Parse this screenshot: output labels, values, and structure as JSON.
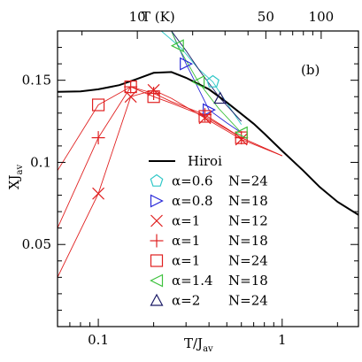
{
  "chart_data": {
    "type": "scatter",
    "panel_label": "(b)",
    "xlabel_main": "T/J",
    "xlabel_sub": "av",
    "ylabel_main": "XJ",
    "ylabel_sub": "av",
    "top_axis_label": "T (K)",
    "x_scale": "log",
    "xlim": [
      0.06,
      2.6
    ],
    "ylim": [
      0,
      0.18
    ],
    "x_ticks": [
      {
        "value": 0.1,
        "label": "0.1"
      },
      {
        "value": 1,
        "label": "1"
      }
    ],
    "y_ticks": [
      {
        "value": 0.05,
        "label": "0.05"
      },
      {
        "value": 0.1,
        "label": "0.1"
      },
      {
        "value": 0.15,
        "label": "0.15"
      }
    ],
    "top_ticks": [
      {
        "value": 0.163,
        "label": "10"
      },
      {
        "value": 0.815,
        "label": "50"
      },
      {
        "value": 1.63,
        "label": "100"
      }
    ],
    "legend_position": "center",
    "series": [
      {
        "name": "Hiroi",
        "kind": "line",
        "color": "#000000",
        "x": [
          0.06,
          0.08,
          0.1,
          0.13,
          0.16,
          0.2,
          0.25,
          0.3,
          0.4,
          0.5,
          0.6,
          0.7,
          0.8,
          1.0,
          1.3,
          1.6,
          2.0,
          2.6
        ],
        "y": [
          0.143,
          0.1432,
          0.1445,
          0.147,
          0.1505,
          0.1545,
          0.155,
          0.1515,
          0.1445,
          0.1365,
          0.1295,
          0.1235,
          0.1175,
          0.107,
          0.095,
          0.085,
          0.076,
          0.068
        ]
      },
      {
        "name": "alpha=0.6 N=24",
        "alpha": "α=0.6",
        "N": "N=24",
        "marker": "pentagon",
        "color": "#2fc7c7",
        "x": [
          0.42
        ],
        "y": [
          0.149
        ],
        "curve_x": [
          0.22,
          0.28,
          0.35,
          0.42,
          0.5,
          0.6
        ],
        "curve_y": [
          0.18,
          0.17,
          0.157,
          0.149,
          0.136,
          0.123
        ]
      },
      {
        "name": "alpha=0.8 N=18",
        "alpha": "α=0.8",
        "N": "N=18",
        "marker": "triangle-right",
        "color": "#2828d8",
        "x": [
          0.3,
          0.4
        ],
        "y": [
          0.16,
          0.132
        ],
        "curve_x": [
          0.25,
          0.3,
          0.35,
          0.4,
          0.5,
          0.6
        ],
        "curve_y": [
          0.18,
          0.16,
          0.145,
          0.132,
          0.124,
          0.118
        ]
      },
      {
        "name": "alpha=1 N=12",
        "alpha": "α=1",
        "N": "N=12",
        "marker": "x",
        "color": "#e02020",
        "x": [
          0.1,
          0.15,
          0.2,
          0.38,
          0.6
        ],
        "y": [
          0.081,
          0.14,
          0.144,
          0.127,
          0.114
        ],
        "curve_x": [
          0.06,
          0.1,
          0.15,
          0.2,
          0.25,
          0.38,
          0.6,
          1.0
        ],
        "curve_y": [
          0.03,
          0.081,
          0.14,
          0.144,
          0.139,
          0.127,
          0.114,
          0.104
        ]
      },
      {
        "name": "alpha=1 N=18",
        "alpha": "α=1",
        "N": "N=18",
        "marker": "plus",
        "color": "#e02020",
        "x": [
          0.1,
          0.15,
          0.2,
          0.38,
          0.6
        ],
        "y": [
          0.115,
          0.146,
          0.142,
          0.129,
          0.115
        ],
        "curve_x": [
          0.06,
          0.1,
          0.15,
          0.2,
          0.25,
          0.38,
          0.6,
          1.0
        ],
        "curve_y": [
          0.06,
          0.115,
          0.146,
          0.142,
          0.137,
          0.129,
          0.115,
          0.104
        ]
      },
      {
        "name": "alpha=1 N=24",
        "alpha": "α=1",
        "N": "N=24",
        "marker": "square",
        "color": "#e02020",
        "x": [
          0.1,
          0.15,
          0.2,
          0.38,
          0.6
        ],
        "y": [
          0.135,
          0.146,
          0.14,
          0.128,
          0.115
        ],
        "curve_x": [
          0.06,
          0.1,
          0.15,
          0.2,
          0.25,
          0.38,
          0.6,
          1.0
        ],
        "curve_y": [
          0.095,
          0.135,
          0.146,
          0.14,
          0.136,
          0.128,
          0.115,
          0.104
        ]
      },
      {
        "name": "alpha=1.4 N=18",
        "alpha": "α=1.4",
        "N": "N=18",
        "marker": "triangle-left",
        "color": "#3ec23e",
        "x": [
          0.27,
          0.35,
          0.6
        ],
        "y": [
          0.171,
          0.149,
          0.118
        ],
        "curve_x": [
          0.25,
          0.27,
          0.35,
          0.45,
          0.6
        ],
        "curve_y": [
          0.18,
          0.171,
          0.149,
          0.133,
          0.118
        ]
      },
      {
        "name": "alpha=2 N=24",
        "alpha": "α=2",
        "N": "N=24",
        "marker": "triangle-up",
        "color": "#1a1a66",
        "x": [
          0.46
        ],
        "y": [
          0.139
        ],
        "curve_x": [
          0.25,
          0.3,
          0.36,
          0.46,
          0.6
        ],
        "curve_y": [
          0.18,
          0.168,
          0.155,
          0.139,
          0.125
        ]
      }
    ]
  }
}
